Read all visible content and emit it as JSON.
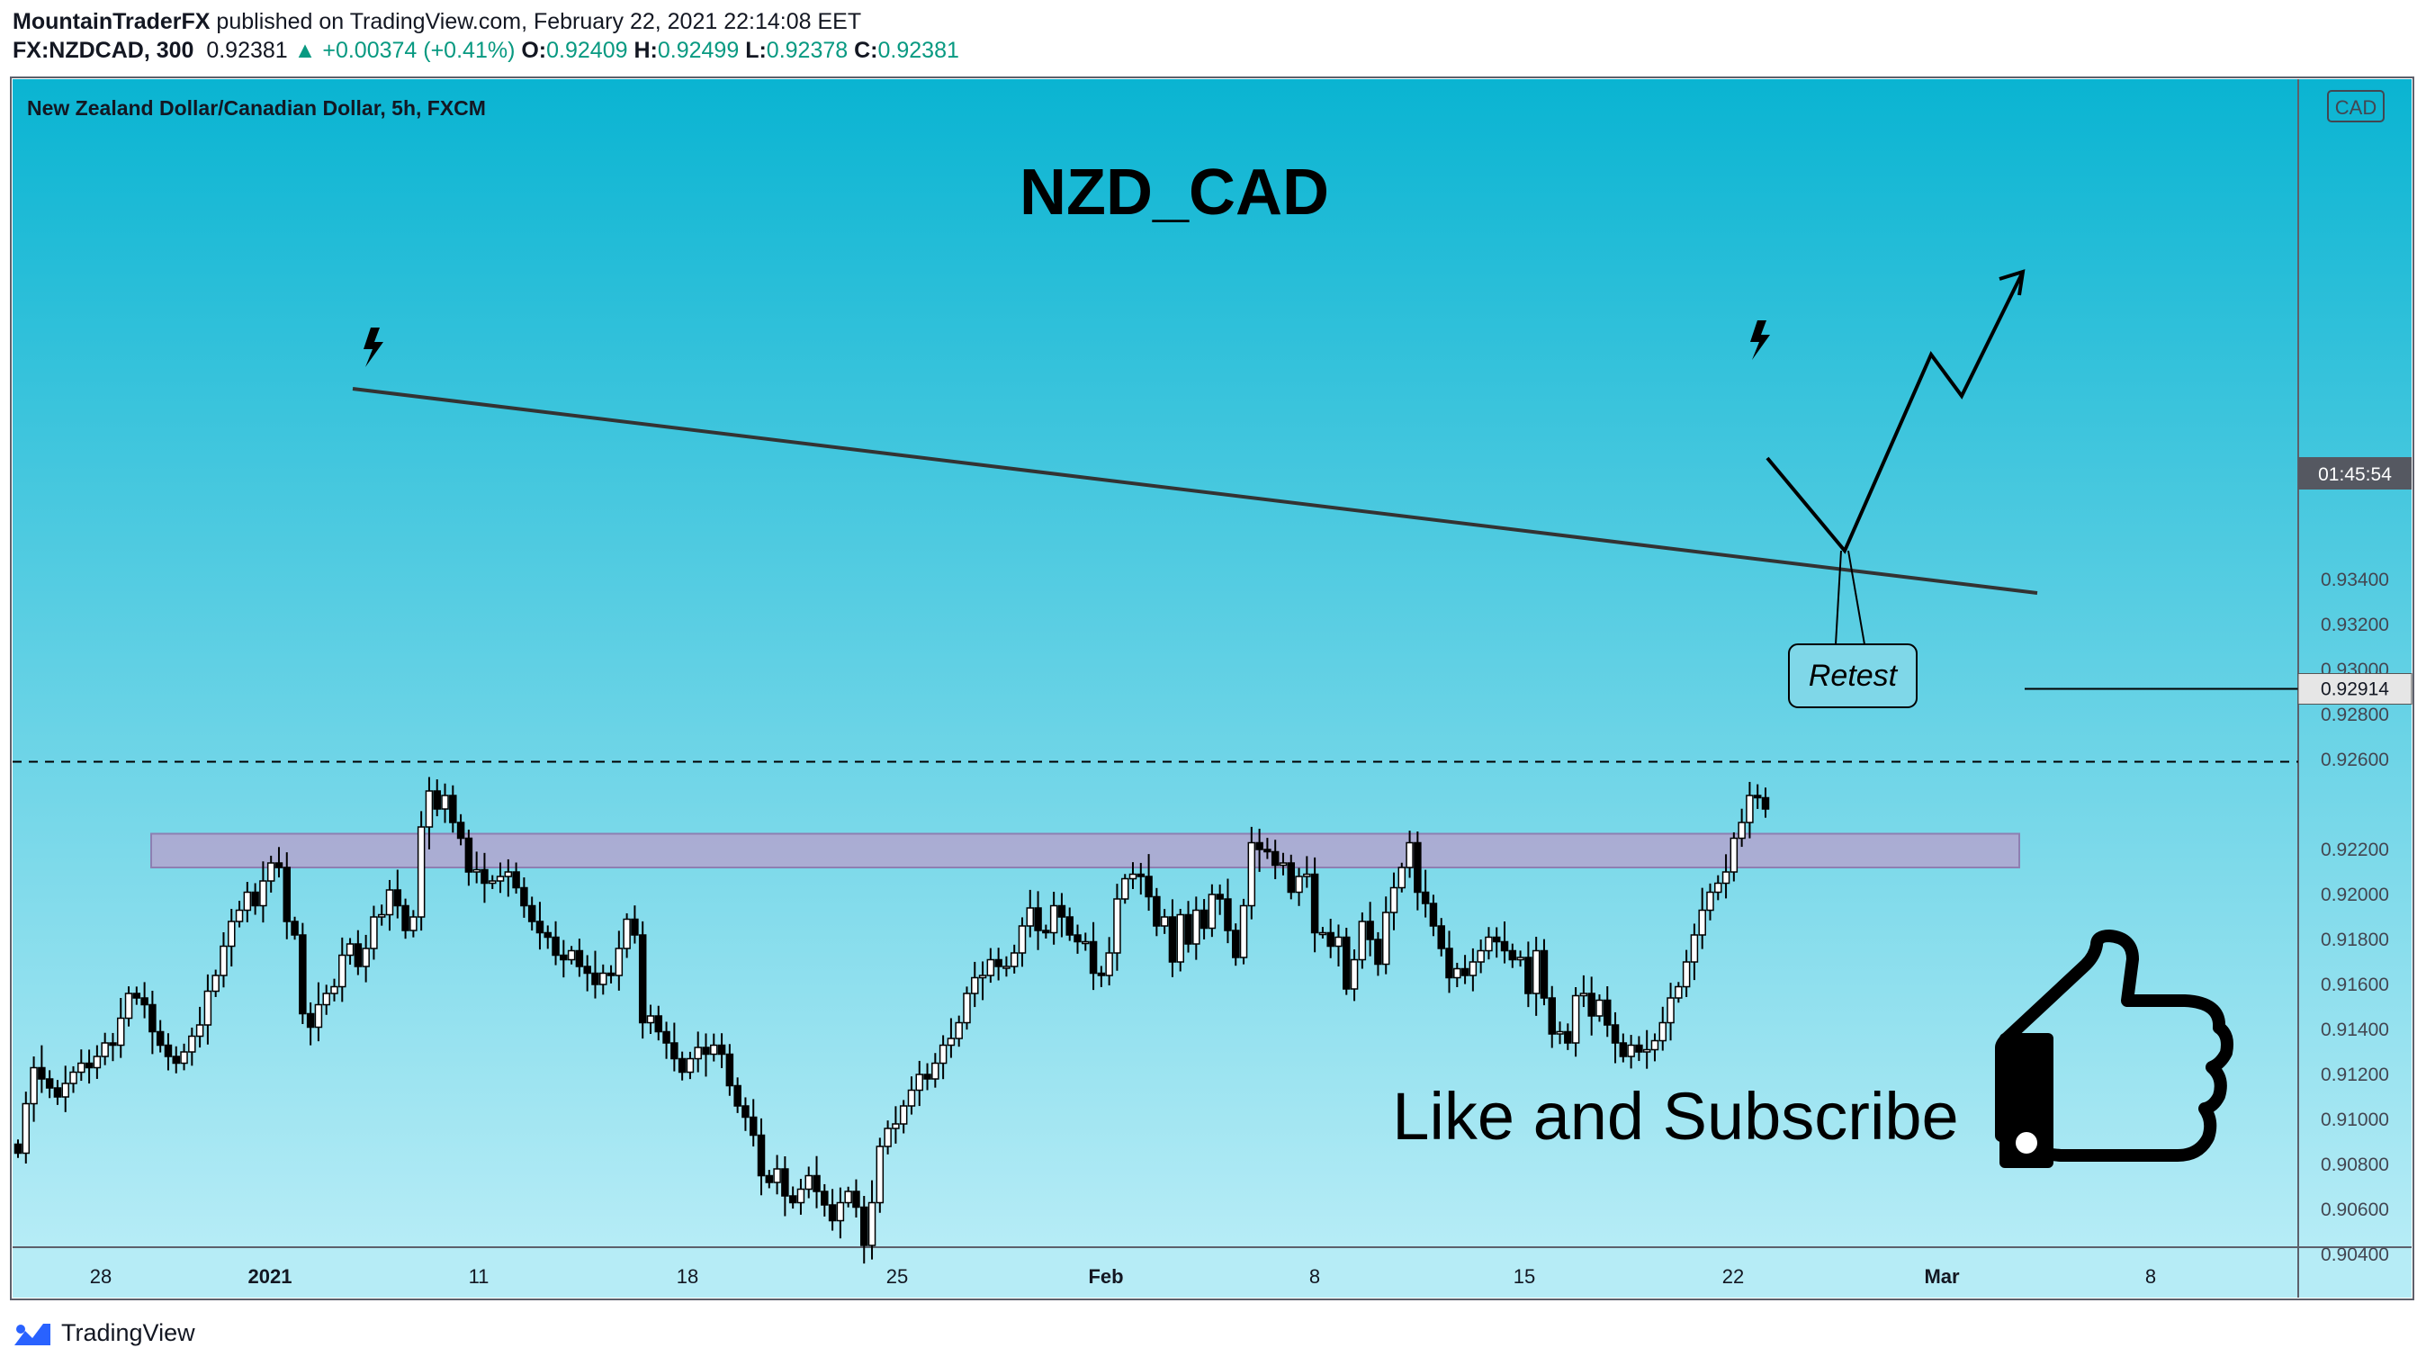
{
  "header": {
    "author": "MountainTraderFX",
    "published": "published on TradingView.com, February 22, 2021 22:14:08 EET",
    "symbol": "FX:NZDCAD, 300",
    "last": "0.92381",
    "change": "▲ +0.00374 (+0.41%)",
    "o_label": "O:",
    "o_value": "0.92409",
    "h_label": "H:",
    "h_value": "0.92499",
    "l_label": "L:",
    "l_value": "0.92378",
    "c_label": "C:",
    "c_value": "0.92381"
  },
  "chart_data": {
    "type": "candlestick",
    "instrument_label": "New Zealand Dollar/Canadian Dollar, 5h, FXCM",
    "title": "NZD_CAD",
    "currency": "CAD",
    "ylim": [
      0.904,
      0.9343
    ],
    "y_ticks": [
      "0.93400",
      "0.93200",
      "0.93000",
      "0.92800",
      "0.92600",
      "0.92200",
      "0.92000",
      "0.91800",
      "0.91600",
      "0.91400",
      "0.91200",
      "0.91000",
      "0.90800",
      "0.90600",
      "0.90400"
    ],
    "x_ticks": [
      "28",
      "2021",
      "11",
      "18",
      "25",
      "Feb",
      "8",
      "15",
      "22",
      "Mar",
      "8"
    ],
    "price_label": "0.92914",
    "countdown_label": "01:45:54",
    "resistance_level": 0.9259,
    "target_level": 0.92914,
    "support_zone": [
      0.9212,
      0.9227
    ],
    "annotations": [
      "Retest",
      "Like and Subscribe"
    ],
    "colors": {
      "background_top": "#0ab4d2",
      "background_bottom": "#b6ecf6",
      "candle": "#000000",
      "zone": "#b3a4cf",
      "axis_text": "#434651"
    },
    "close_series": [
      0.9085,
      0.9107,
      0.9123,
      0.9118,
      0.9114,
      0.911,
      0.9116,
      0.9121,
      0.9125,
      0.9123,
      0.9128,
      0.9134,
      0.9133,
      0.9145,
      0.9156,
      0.9154,
      0.9151,
      0.9139,
      0.9133,
      0.9128,
      0.9125,
      0.913,
      0.9137,
      0.9142,
      0.9157,
      0.9164,
      0.9177,
      0.9188,
      0.9193,
      0.9201,
      0.9195,
      0.9206,
      0.9214,
      0.9212,
      0.9188,
      0.9182,
      0.9147,
      0.9141,
      0.9151,
      0.9156,
      0.9159,
      0.9173,
      0.9178,
      0.9168,
      0.9176,
      0.919,
      0.9191,
      0.9202,
      0.9195,
      0.9184,
      0.919,
      0.923,
      0.9246,
      0.9238,
      0.9244,
      0.9232,
      0.9225,
      0.921,
      0.9211,
      0.9205,
      0.9206,
      0.9208,
      0.921,
      0.9203,
      0.9195,
      0.9188,
      0.9183,
      0.9181,
      0.9173,
      0.9171,
      0.9175,
      0.9168,
      0.9165,
      0.916,
      0.9165,
      0.9164,
      0.9176,
      0.9189,
      0.9182,
      0.9143,
      0.9146,
      0.9139,
      0.9134,
      0.9127,
      0.9121,
      0.9127,
      0.9132,
      0.9129,
      0.9133,
      0.9129,
      0.9115,
      0.9106,
      0.9101,
      0.9093,
      0.9075,
      0.9072,
      0.9078,
      0.9066,
      0.9063,
      0.9069,
      0.9075,
      0.9068,
      0.9062,
      0.9055,
      0.9063,
      0.9068,
      0.9061,
      0.9044,
      0.9063,
      0.9088,
      0.9096,
      0.9098,
      0.9106,
      0.9113,
      0.912,
      0.9118,
      0.9125,
      0.9133,
      0.9136,
      0.9143,
      0.9156,
      0.9163,
      0.9164,
      0.9171,
      0.9168,
      0.9168,
      0.9174,
      0.9186,
      0.9194,
      0.9184,
      0.9183,
      0.9195,
      0.919,
      0.9182,
      0.9179,
      0.9179,
      0.9165,
      0.9164,
      0.9174,
      0.9198,
      0.9207,
      0.9209,
      0.9208,
      0.9199,
      0.9186,
      0.919,
      0.917,
      0.9191,
      0.9178,
      0.9193,
      0.9185,
      0.92,
      0.9198,
      0.9184,
      0.9172,
      0.9195,
      0.9223,
      0.922,
      0.9219,
      0.9213,
      0.9214,
      0.9201,
      0.9208,
      0.9209,
      0.9183,
      0.9183,
      0.9177,
      0.9181,
      0.9158,
      0.9171,
      0.9188,
      0.918,
      0.9169,
      0.9192,
      0.9203,
      0.9212,
      0.9223,
      0.9201,
      0.9196,
      0.9186,
      0.9176,
      0.9163,
      0.9167,
      0.9164,
      0.917,
      0.9175,
      0.9181,
      0.9179,
      0.9175,
      0.9171,
      0.9172,
      0.9156,
      0.9175,
      0.9154,
      0.9138,
      0.9139,
      0.9134,
      0.9155,
      0.9156,
      0.9146,
      0.9153,
      0.9142,
      0.9134,
      0.9128,
      0.9133,
      0.913,
      0.9131,
      0.9135,
      0.9143,
      0.9154,
      0.9159,
      0.917,
      0.9182,
      0.9193,
      0.9201,
      0.9205,
      0.921,
      0.9225,
      0.9232,
      0.9244,
      0.9243,
      0.9238
    ]
  }
}
